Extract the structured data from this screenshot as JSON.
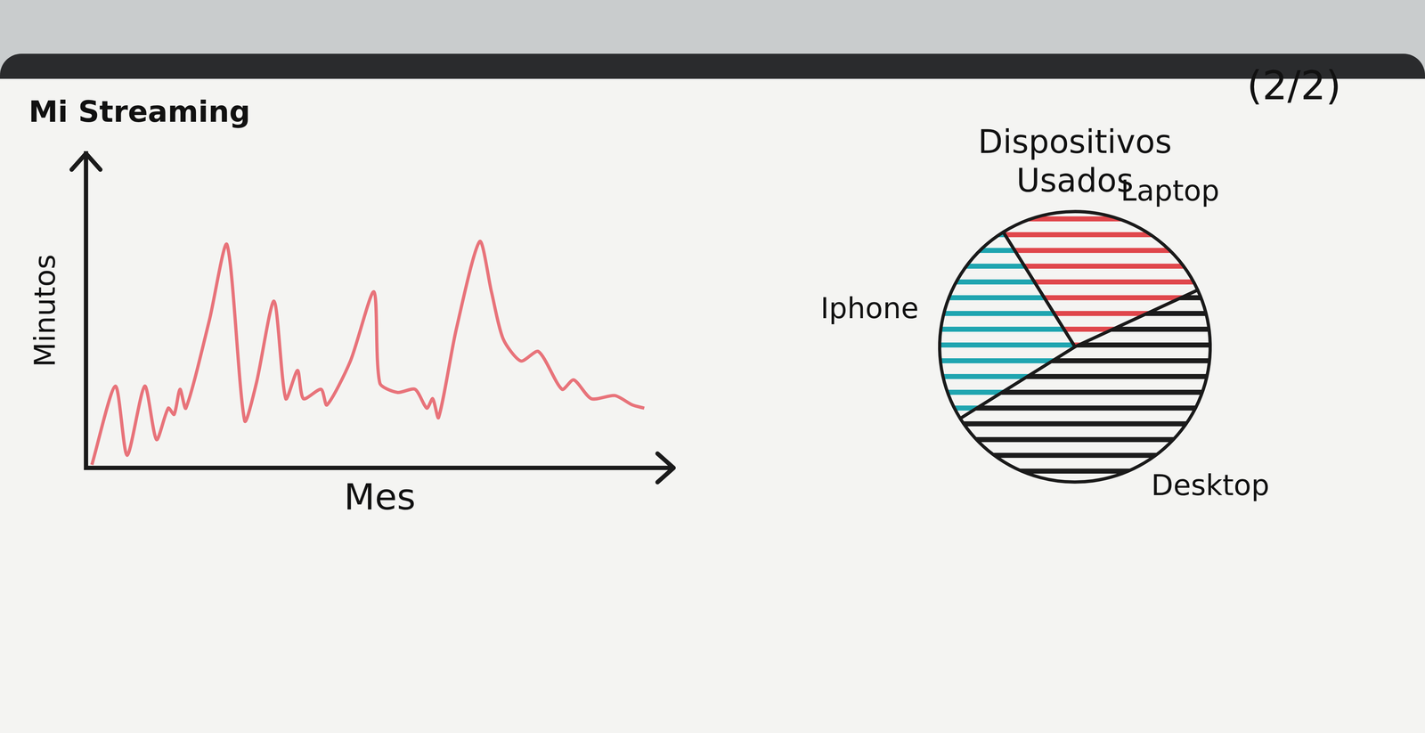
{
  "chart_data": [
    {
      "type": "line",
      "title": "Mi Streaming",
      "x_label": "Mes",
      "y_label": "Minutos",
      "x": [
        1,
        5,
        7,
        10,
        12,
        14,
        15,
        16,
        17,
        21,
        24,
        27,
        29,
        32,
        34,
        36,
        37,
        40,
        41,
        45,
        49,
        50,
        53,
        56,
        58,
        59,
        60,
        63,
        67,
        69,
        71,
        74,
        77,
        81,
        83,
        86,
        90,
        93,
        95
      ],
      "values": [
        1,
        26,
        4,
        26,
        9,
        19,
        17,
        25,
        19,
        47,
        71,
        15,
        27,
        53,
        22,
        31,
        22,
        25,
        20,
        34,
        56,
        27,
        24,
        25,
        19,
        22,
        16,
        44,
        72,
        56,
        41,
        34,
        37,
        25,
        28,
        22,
        23,
        20,
        19
      ],
      "color": "#e8737a",
      "xlim": [
        0,
        100
      ],
      "ylim": [
        0,
        100
      ],
      "tick_labels": false,
      "grid": false
    },
    {
      "type": "pie",
      "title": "Dispositivos Usados",
      "categories": [
        "Laptop",
        "Desktop",
        "Iphone"
      ],
      "values": [
        27,
        48,
        25
      ],
      "colors": [
        "#e0474c",
        "#1c1c1c",
        "#1fa5b0"
      ],
      "annotations": [
        "(2/2)"
      ]
    }
  ]
}
